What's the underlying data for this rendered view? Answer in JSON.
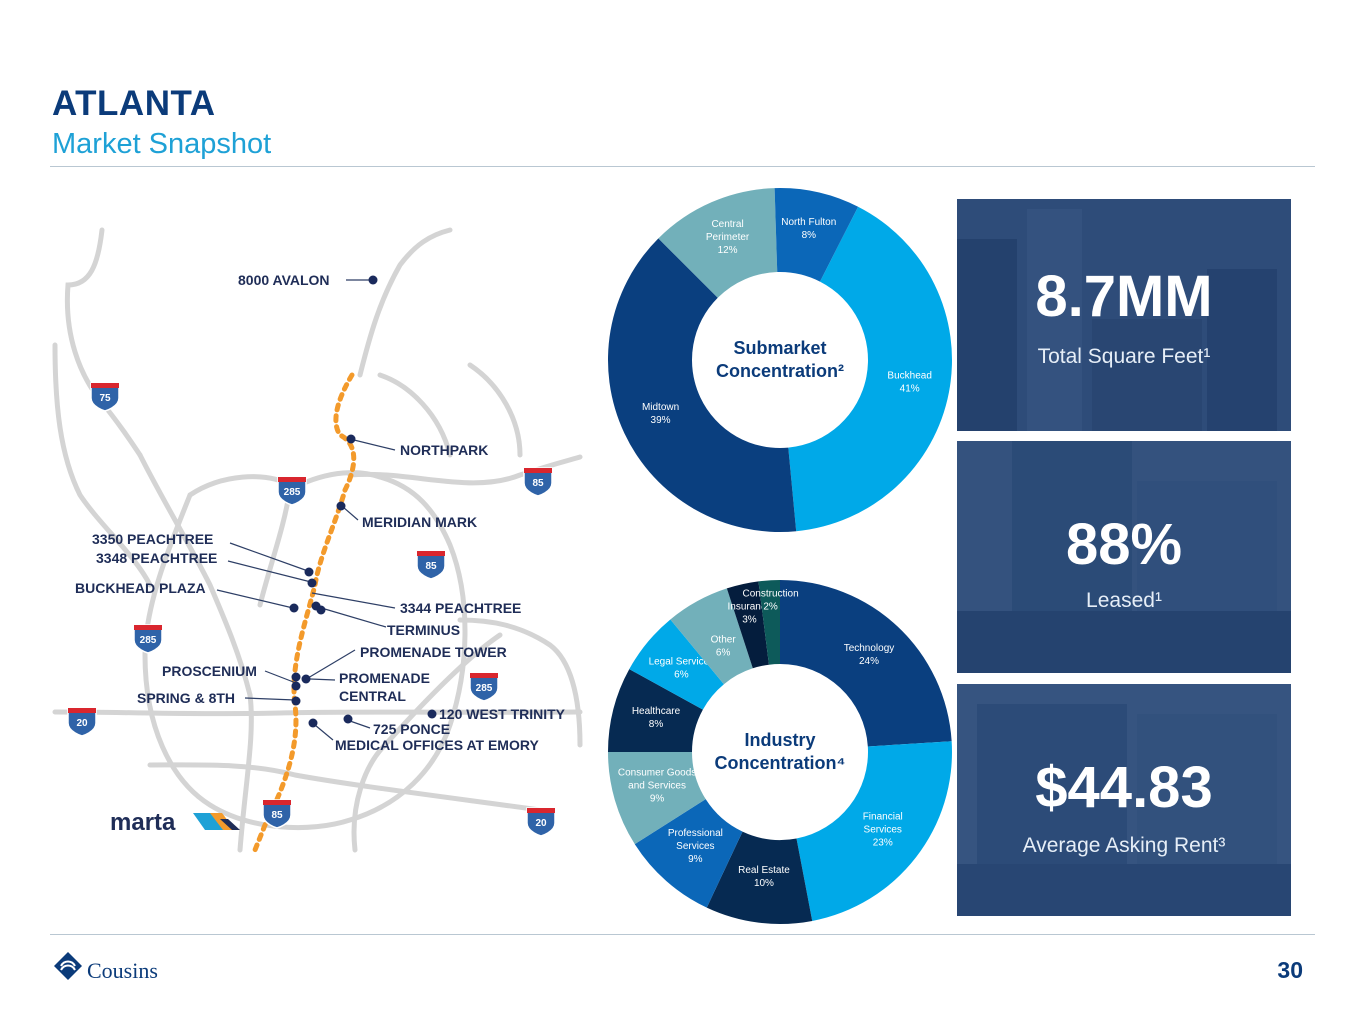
{
  "header": {
    "title": "ATLANTA",
    "subtitle": "Market Snapshot"
  },
  "map": {
    "labels": [
      "8000 AVALON",
      "NORTHPARK",
      "MERIDIAN MARK",
      "3350 PEACHTREE",
      "3348 PEACHTREE",
      "BUCKHEAD PLAZA",
      "3344 PEACHTREE",
      "TERMINUS",
      "PROMENADE TOWER",
      "PROSCENIUM",
      "PROMENADE",
      "CENTRAL",
      "SPRING & 8TH",
      "120 WEST TRINITY",
      "725 PONCE",
      "MEDICAL OFFICES AT EMORY"
    ],
    "shields": [
      "75",
      "285",
      "85",
      "85",
      "285",
      "285",
      "20",
      "85",
      "20"
    ],
    "brand": "marta"
  },
  "chart_data": [
    {
      "type": "pie",
      "title_line1": "Submarket",
      "title_line2": "Concentration²",
      "slices": [
        {
          "label": "Buckhead",
          "value": 41,
          "pct": "41%",
          "color": "#00a9e8"
        },
        {
          "label": "Midtown",
          "value": 39,
          "pct": "39%",
          "color": "#0a3f7f"
        },
        {
          "label": "Central Perimeter",
          "value": 12,
          "pct": "12%",
          "color": "#72b0ba"
        },
        {
          "label": "North Fulton",
          "value": 8,
          "pct": "8%",
          "color": "#0b67b8"
        }
      ]
    },
    {
      "type": "pie",
      "title_line1": "Industry",
      "title_line2": "Concentration⁴",
      "slices": [
        {
          "label": "Technology",
          "value": 24,
          "pct": "24%",
          "color": "#0a3f7f"
        },
        {
          "label": "Financial Services",
          "value": 23,
          "pct": "23%",
          "color": "#00a9e8"
        },
        {
          "label": "Real Estate",
          "value": 10,
          "pct": "10%",
          "color": "#062a52"
        },
        {
          "label": "Professional Services",
          "value": 9,
          "pct": "9%",
          "color": "#0b67b8"
        },
        {
          "label": "Consumer Goods and Services",
          "value": 9,
          "pct": "9%",
          "color": "#72b0ba"
        },
        {
          "label": "Healthcare",
          "value": 8,
          "pct": "8%",
          "color": "#062a52"
        },
        {
          "label": "Legal Services",
          "value": 6,
          "pct": "6%",
          "color": "#00a9e8"
        },
        {
          "label": "Other",
          "value": 6,
          "pct": "6%",
          "color": "#72b0ba"
        },
        {
          "label": "Insurance",
          "value": 3,
          "pct": "3%",
          "color": "#041d3d"
        },
        {
          "label": "Construction",
          "value": 2,
          "pct": "2%",
          "color": "#0d5a5a"
        }
      ]
    }
  ],
  "stats": [
    {
      "value": "8.7MM",
      "label": "Total Square Feet¹"
    },
    {
      "value": "88%",
      "label": "Leased¹"
    },
    {
      "value": "$44.83",
      "label": "Average Asking Rent³"
    }
  ],
  "footer": {
    "brand": "Cousins",
    "page": "30"
  }
}
